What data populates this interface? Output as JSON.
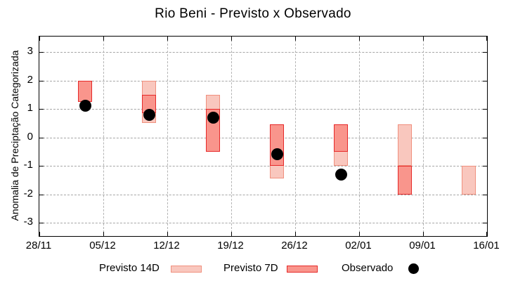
{
  "title": "Rio Beni - Previsto x Observado",
  "y_axis": {
    "label": "Anomalia de Preciptação Categorizada",
    "ticks": [
      3,
      2,
      1,
      0,
      -1,
      -2,
      -3
    ]
  },
  "x_axis": {
    "tick_labels": [
      "28/11",
      "05/12",
      "12/12",
      "19/12",
      "26/12",
      "02/01",
      "09/01",
      "16/01"
    ]
  },
  "legend": {
    "items": [
      {
        "label": "Previsto 14D",
        "swatch": "box",
        "fill": "#f9c7be",
        "border": "#f0907e"
      },
      {
        "label": "Previsto 7D",
        "swatch": "box",
        "fill": "#f9958c",
        "border": "#e62929"
      },
      {
        "label": "Observado",
        "swatch": "dot",
        "color": "#000000"
      }
    ]
  },
  "colors": {
    "previsto14_fill": "#f9c7be",
    "previsto14_border": "#f0907e",
    "previsto7_fill": "#f9958c",
    "previsto7_border": "#e62929",
    "observado": "#000000",
    "grid": "#a6a6a6",
    "border": "#000000"
  },
  "chart_data": {
    "type": "bar",
    "subtype": "range-bars-with-scatter",
    "title": "Rio Beni - Previsto x Observado",
    "xlabel": "",
    "ylabel": "Anomalia de Preciptação Categorizada",
    "ylim": [
      -3.5,
      3.55
    ],
    "x_start_date": "28/11",
    "x_end_date": "16/01",
    "x_tick_labels": [
      "28/11",
      "05/12",
      "12/12",
      "19/12",
      "26/12",
      "02/01",
      "09/01",
      "16/01"
    ],
    "grid": "dashed horizontal and vertical at ticks",
    "legend_position": "below plot, centered row",
    "dates": [
      "03/12",
      "10/12",
      "17/12",
      "24/12",
      "31/12",
      "07/01",
      "14/01"
    ],
    "series": [
      {
        "name": "Previsto 14D",
        "type": "range-bar",
        "ranges": [
          [
            1.25,
            2.0
          ],
          [
            0.5,
            2.0
          ],
          [
            -0.5,
            1.5
          ],
          [
            -1.45,
            0.45
          ],
          [
            -1.0,
            0.45
          ],
          [
            -1.0,
            0.45
          ],
          [
            -2.0,
            -1.0
          ]
        ]
      },
      {
        "name": "Previsto 7D",
        "type": "range-bar",
        "ranges": [
          [
            1.25,
            2.0
          ],
          [
            0.85,
            1.5
          ],
          [
            -0.5,
            1.0
          ],
          [
            -1.0,
            0.45
          ],
          [
            -0.5,
            0.45
          ],
          [
            -2.0,
            -1.0
          ],
          null
        ]
      },
      {
        "name": "Observado",
        "type": "scatter",
        "values": [
          1.1,
          0.8,
          0.7,
          -0.6,
          -1.3,
          null,
          null
        ]
      }
    ]
  }
}
